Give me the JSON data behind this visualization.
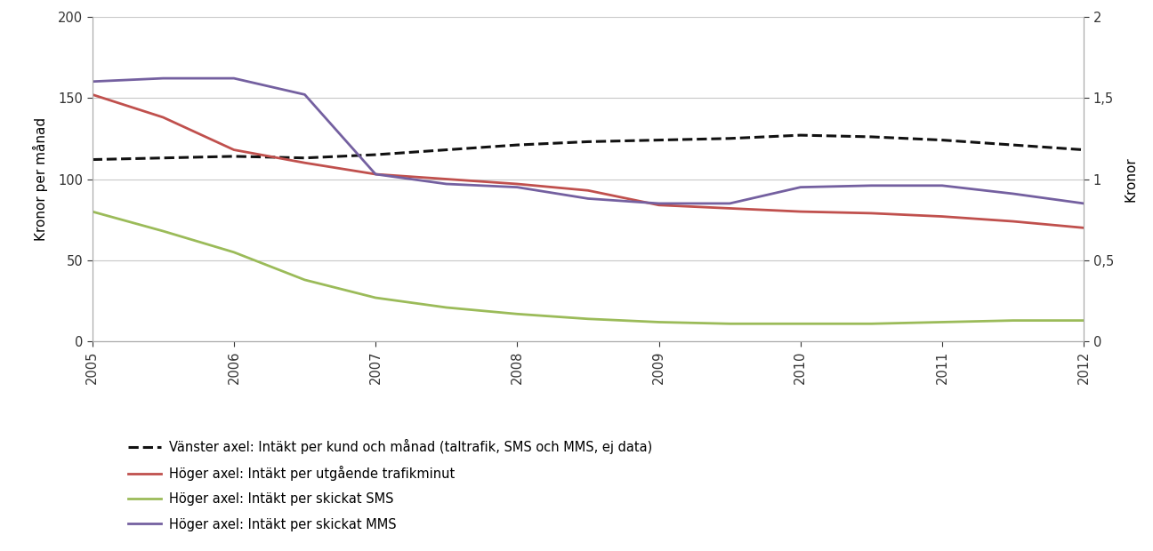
{
  "left_axis": {
    "label": "Kronor per månad",
    "ylim": [
      0,
      200
    ],
    "yticks": [
      0,
      50,
      100,
      150,
      200
    ]
  },
  "right_axis": {
    "label": "Kronor",
    "ylim": [
      0,
      2
    ],
    "yticks": [
      0,
      0.5,
      1,
      1.5,
      2
    ],
    "yticklabels": [
      "0",
      "0,5",
      "1",
      "1,5",
      "2"
    ]
  },
  "series": {
    "black_dashed": {
      "label": "Vänster axel: Intäkt per kund och månad (taltrafik, SMS och MMS, ej data)",
      "color": "#111111",
      "linestyle": "--",
      "linewidth": 2.2,
      "x": [
        2005,
        2005.5,
        2006,
        2006.5,
        2007,
        2007.5,
        2008,
        2008.5,
        2009,
        2009.5,
        2010,
        2010.5,
        2011,
        2011.5,
        2012
      ],
      "y": [
        112,
        113,
        114,
        113,
        115,
        118,
        121,
        123,
        124,
        125,
        127,
        126,
        124,
        121,
        118
      ]
    },
    "red": {
      "label": "Höger axel: Intäkt per utgående trafikminut",
      "color": "#c0504d",
      "linestyle": "-",
      "linewidth": 2.0,
      "x": [
        2005,
        2005.5,
        2006,
        2006.5,
        2007,
        2007.5,
        2008,
        2008.5,
        2009,
        2009.5,
        2010,
        2010.5,
        2011,
        2011.5,
        2012
      ],
      "y": [
        152,
        138,
        118,
        110,
        103,
        100,
        97,
        93,
        84,
        82,
        80,
        79,
        77,
        74,
        70
      ]
    },
    "green": {
      "label": "Höger axel: Intäkt per skickat SMS",
      "color": "#9bbb59",
      "linestyle": "-",
      "linewidth": 2.0,
      "x": [
        2005,
        2005.5,
        2006,
        2006.5,
        2007,
        2007.5,
        2008,
        2008.5,
        2009,
        2009.5,
        2010,
        2010.5,
        2011,
        2011.5,
        2012
      ],
      "y": [
        80,
        68,
        55,
        38,
        27,
        21,
        17,
        14,
        12,
        11,
        11,
        11,
        12,
        13,
        13
      ]
    },
    "purple": {
      "label": "Höger axel: Intäkt per skickat MMS",
      "color": "#7460a0",
      "linestyle": "-",
      "linewidth": 2.0,
      "x": [
        2005,
        2005.5,
        2006,
        2006.5,
        2007,
        2007.5,
        2008,
        2008.5,
        2009,
        2009.5,
        2010,
        2010.5,
        2011,
        2011.5,
        2012
      ],
      "y": [
        160,
        162,
        162,
        152,
        103,
        97,
        95,
        88,
        85,
        85,
        95,
        96,
        96,
        91,
        85
      ]
    }
  },
  "xticks": [
    2005,
    2006,
    2007,
    2008,
    2009,
    2010,
    2011,
    2012
  ],
  "xlim": [
    2005,
    2012
  ],
  "grid_color": "#c8c8c8",
  "background_color": "#ffffff",
  "legend": {
    "fontsize": 10.5,
    "labelspacing": 0.9,
    "handlelength": 2.5,
    "handletextpad": 0.6
  }
}
